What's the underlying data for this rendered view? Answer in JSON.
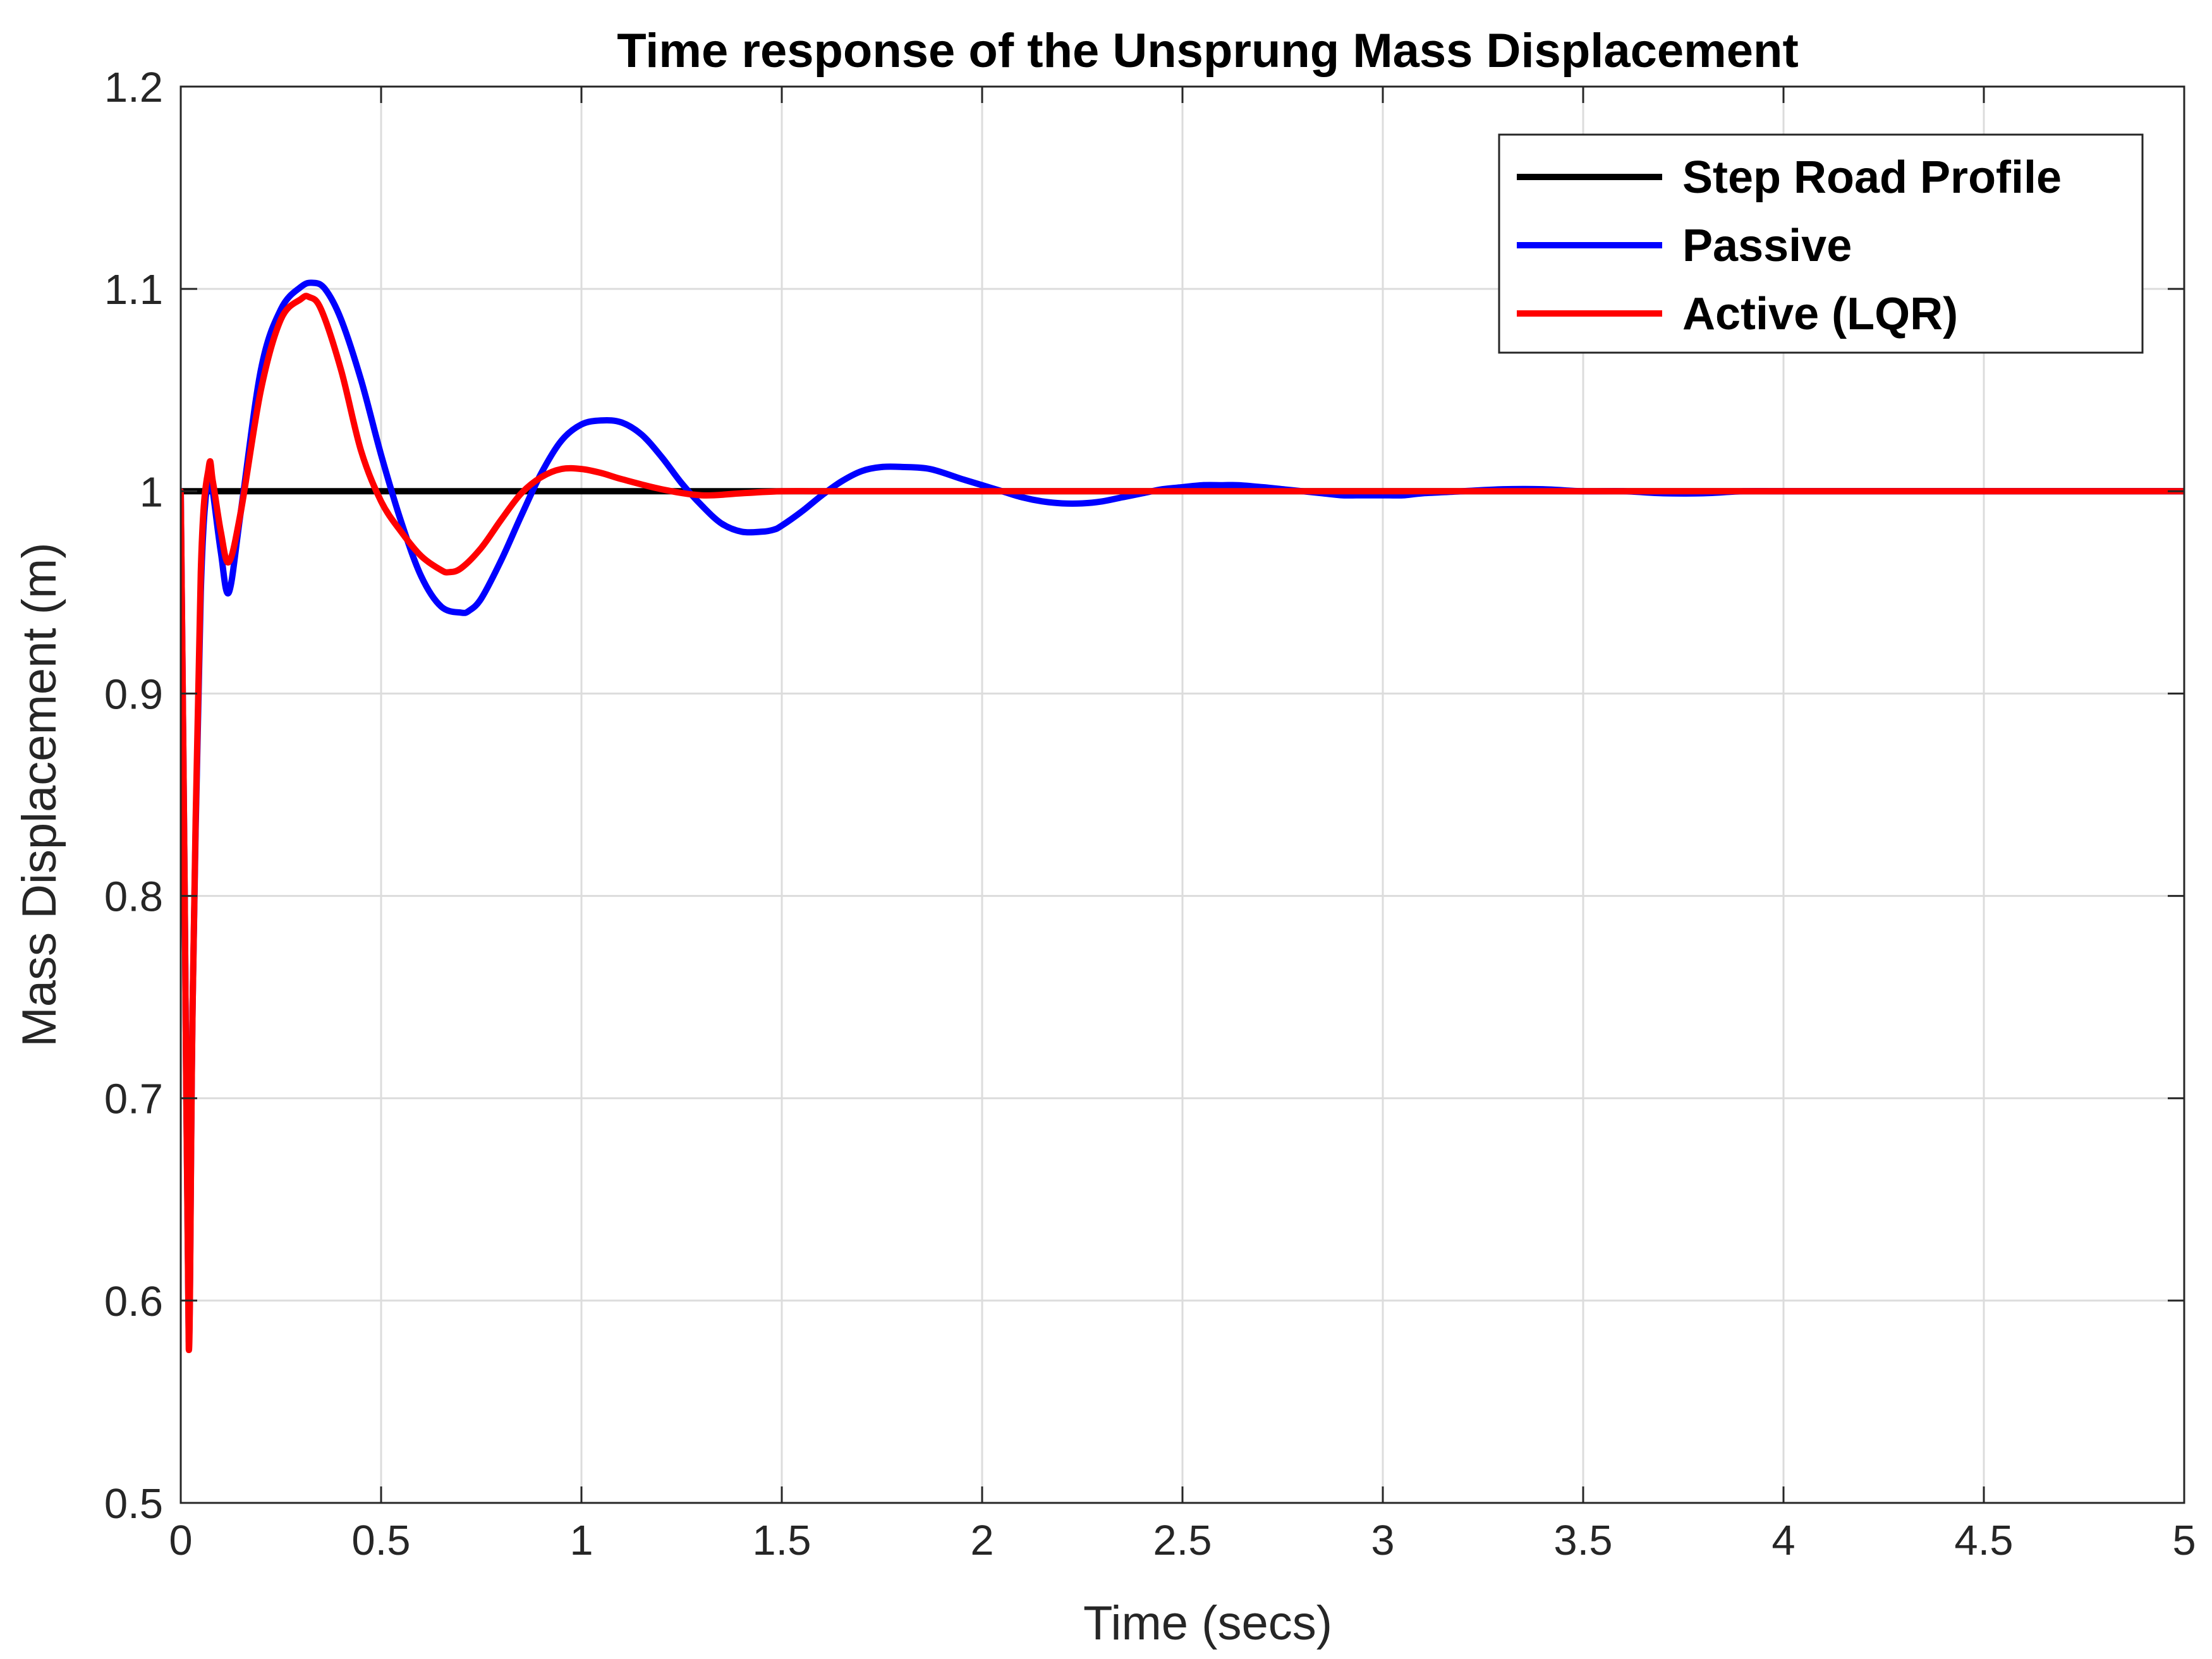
{
  "chart_data": {
    "type": "line",
    "title": "Time response of the Unsprung Mass Displacement",
    "xlabel": "Time (secs)",
    "ylabel": "Mass Displacement (m)",
    "xlim": [
      0,
      5
    ],
    "ylim": [
      0.5,
      1.2
    ],
    "xticks": [
      0,
      0.5,
      1,
      1.5,
      2,
      2.5,
      3,
      3.5,
      4,
      4.5,
      5
    ],
    "xtick_labels": [
      "0",
      "0.5",
      "1",
      "1.5",
      "2",
      "2.5",
      "3",
      "3.5",
      "4",
      "4.5",
      "5"
    ],
    "yticks": [
      0.5,
      0.6,
      0.7,
      0.8,
      0.9,
      1.0,
      1.1,
      1.2
    ],
    "ytick_labels": [
      "0.5",
      "0.6",
      "0.7",
      "0.8",
      "0.9",
      "1",
      "1.1",
      "1.2"
    ],
    "grid": true,
    "legend_position": "top-right",
    "series": [
      {
        "name": "Step Road Profile",
        "color": "#000000",
        "x": [
          0,
          5
        ],
        "y": [
          1.0,
          1.0
        ]
      },
      {
        "name": "Passive",
        "color": "#0000ff",
        "x": [
          0,
          0.01,
          0.02,
          0.03,
          0.05,
          0.07,
          0.08,
          0.1,
          0.12,
          0.15,
          0.2,
          0.25,
          0.3,
          0.33,
          0.36,
          0.4,
          0.45,
          0.5,
          0.55,
          0.6,
          0.65,
          0.7,
          0.72,
          0.75,
          0.8,
          0.85,
          0.9,
          0.95,
          1.0,
          1.05,
          1.1,
          1.15,
          1.2,
          1.25,
          1.3,
          1.35,
          1.4,
          1.45,
          1.48,
          1.5,
          1.55,
          1.6,
          1.65,
          1.7,
          1.75,
          1.8,
          1.87,
          1.95,
          2.0,
          2.05,
          2.1,
          2.15,
          2.2,
          2.25,
          2.3,
          2.35,
          2.4,
          2.45,
          2.5,
          2.55,
          2.6,
          2.64,
          2.7,
          2.75,
          2.8,
          2.85,
          2.9,
          2.95,
          3.0,
          3.05,
          3.1,
          3.2,
          3.3,
          3.4,
          3.5,
          3.6,
          3.7,
          3.8,
          3.9,
          4.0,
          4.1,
          4.2,
          4.3,
          4.5,
          4.7,
          5.0
        ],
        "y": [
          1.0,
          0.8,
          0.58,
          0.75,
          0.95,
          1.01,
          1.0,
          0.97,
          0.95,
          0.99,
          1.06,
          1.09,
          1.101,
          1.103,
          1.1,
          1.085,
          1.055,
          1.018,
          0.985,
          0.958,
          0.943,
          0.94,
          0.941,
          0.947,
          0.966,
          0.988,
          1.009,
          1.025,
          1.033,
          1.035,
          1.034,
          1.028,
          1.017,
          1.004,
          0.993,
          0.984,
          0.98,
          0.98,
          0.981,
          0.983,
          0.99,
          0.998,
          1.005,
          1.01,
          1.012,
          1.012,
          1.011,
          1.006,
          1.003,
          1.0,
          0.997,
          0.995,
          0.994,
          0.994,
          0.995,
          0.997,
          0.999,
          1.001,
          1.002,
          1.003,
          1.003,
          1.003,
          1.002,
          1.001,
          1.0,
          0.999,
          0.998,
          0.998,
          0.998,
          0.998,
          0.999,
          1.0,
          1.001,
          1.001,
          1.0,
          1.0,
          0.999,
          0.999,
          1.0,
          1.0,
          1.0,
          1.0,
          1.0,
          1.0,
          1.0,
          1.0
        ]
      },
      {
        "name": "Active (LQR)",
        "color": "#ff0000",
        "x": [
          0,
          0.01,
          0.02,
          0.03,
          0.05,
          0.07,
          0.08,
          0.1,
          0.12,
          0.15,
          0.2,
          0.25,
          0.3,
          0.32,
          0.35,
          0.4,
          0.45,
          0.5,
          0.55,
          0.6,
          0.65,
          0.67,
          0.7,
          0.75,
          0.8,
          0.85,
          0.9,
          0.95,
          1.0,
          1.05,
          1.1,
          1.2,
          1.3,
          1.4,
          1.5,
          1.6,
          1.7,
          1.8,
          2.0,
          3.0,
          4.0,
          5.0
        ],
        "y": [
          1.0,
          0.8,
          0.576,
          0.75,
          0.96,
          1.012,
          1.005,
          0.98,
          0.965,
          0.99,
          1.05,
          1.085,
          1.095,
          1.096,
          1.09,
          1.06,
          1.02,
          0.995,
          0.98,
          0.968,
          0.961,
          0.96,
          0.962,
          0.972,
          0.986,
          0.999,
          1.007,
          1.011,
          1.011,
          1.009,
          1.006,
          1.001,
          0.998,
          0.999,
          1.0,
          1.0,
          1.0,
          1.0,
          1.0,
          1.0,
          1.0,
          1.0
        ]
      }
    ]
  }
}
